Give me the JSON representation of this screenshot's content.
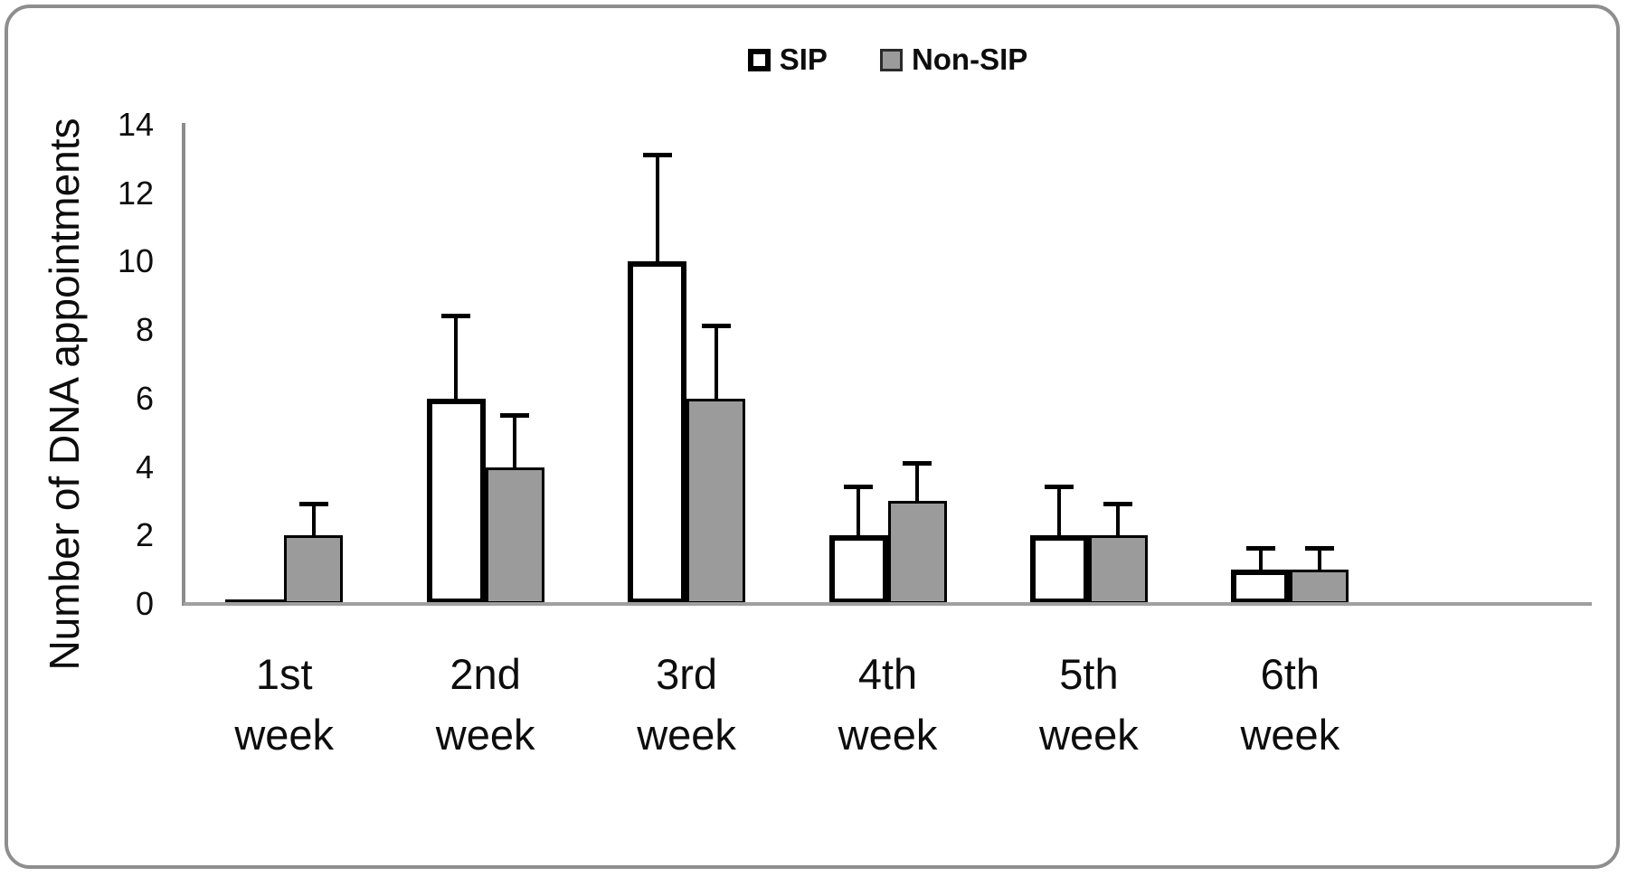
{
  "chart_data": {
    "type": "bar",
    "title": "",
    "categories": [
      "1st week",
      "2nd week",
      "3rd week",
      "4th week",
      "5th week",
      "6th week"
    ],
    "xlabel": "",
    "ylabel": "Number of DNA appointments",
    "ylim": [
      0,
      14
    ],
    "yticks": [
      0,
      2,
      4,
      6,
      8,
      10,
      12,
      14
    ],
    "grid": false,
    "legend_position": "top-center",
    "series": [
      {
        "name": "SIP",
        "fill": "#ffffff",
        "border": "#000000",
        "values": [
          0,
          6,
          10,
          2,
          2,
          1
        ],
        "error_plus": [
          0,
          2.4,
          3.1,
          1.4,
          1.4,
          0.6
        ]
      },
      {
        "name": "Non-SIP",
        "fill": "#9b9b9b",
        "border": "#000000",
        "values": [
          2,
          4,
          6,
          3,
          2,
          1
        ],
        "error_plus": [
          0.9,
          1.5,
          2.1,
          1.1,
          0.9,
          0.6
        ]
      }
    ],
    "colors": {
      "axis_line": "#8c8c8c",
      "baseline": "#a0a0a0",
      "text": "#0d0d0d",
      "frame_border": "#8e8e8e"
    }
  }
}
